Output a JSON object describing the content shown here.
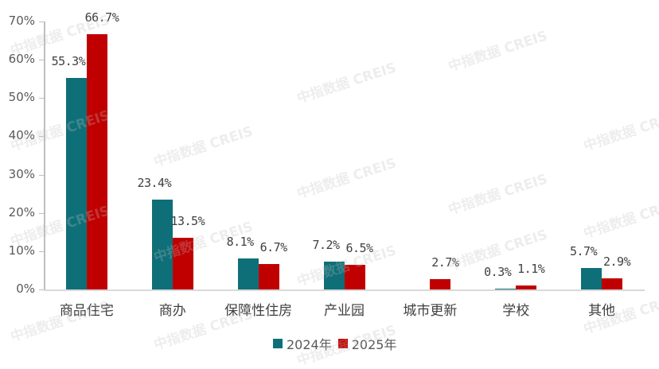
{
  "chart_data": {
    "type": "bar",
    "title": "",
    "xlabel": "",
    "ylabel": "",
    "ylim": [
      0,
      70
    ],
    "yticks": [
      "0%",
      "10%",
      "20%",
      "30%",
      "40%",
      "50%",
      "60%",
      "70%"
    ],
    "grid": false,
    "legend_position": "bottom",
    "categories": [
      "商品住宅",
      "商办",
      "保障性住房",
      "产业园",
      "城市更新",
      "学校",
      "其他"
    ],
    "series": [
      {
        "name": "2024年",
        "color": "#0e6f78",
        "values": [
          55.3,
          23.4,
          8.1,
          7.2,
          null,
          0.3,
          5.7
        ],
        "labels": [
          "55.3%",
          "23.4%",
          "8.1%",
          "7.2%",
          "",
          "0.3%",
          "5.7%"
        ]
      },
      {
        "name": "2025年",
        "color": "#c00000",
        "values": [
          66.7,
          13.5,
          6.7,
          6.5,
          2.7,
          1.1,
          2.9
        ],
        "labels": [
          "66.7%",
          "13.5%",
          "6.7%",
          "6.5%",
          "2.7%",
          "1.1%",
          "2.9%"
        ]
      }
    ]
  },
  "watermark": "中指数据 CREIS"
}
